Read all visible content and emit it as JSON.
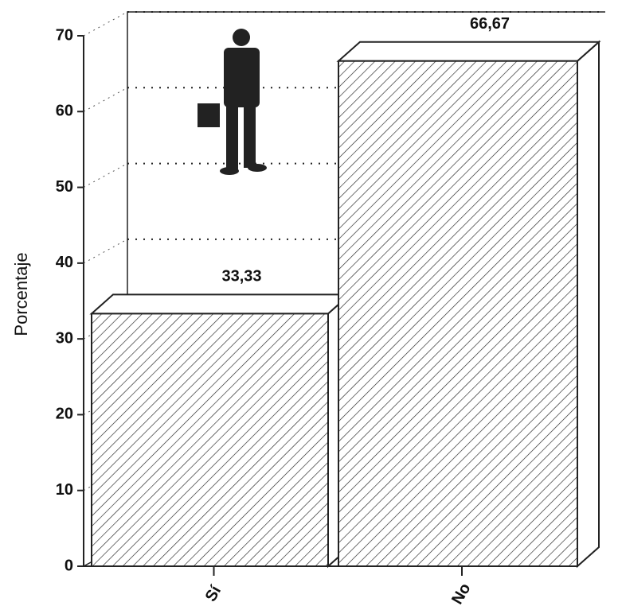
{
  "chart_data": {
    "type": "bar3d",
    "y_label": "Porcentaje",
    "categories": [
      "Sí",
      "No"
    ],
    "values": [
      33.33,
      66.67
    ],
    "value_labels": [
      "33,33",
      "66,67"
    ],
    "color": "#ffffff",
    "ylim": [
      0,
      70
    ],
    "yticks": [
      0,
      10,
      20,
      30,
      40,
      50,
      60,
      70
    ],
    "grid": true
  }
}
